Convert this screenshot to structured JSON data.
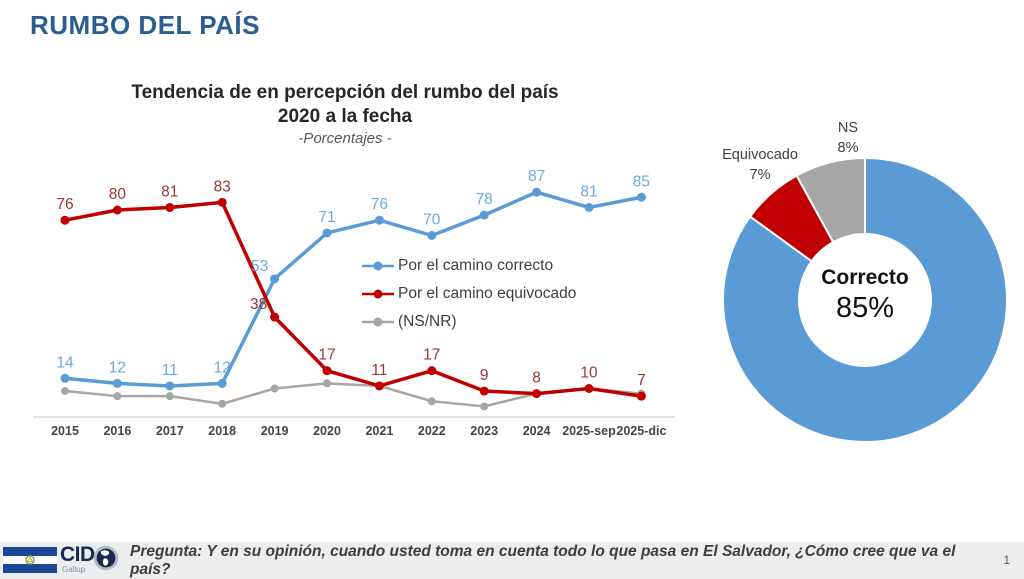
{
  "page": {
    "title": "RUMBO DEL PAÍS",
    "page_number": "1"
  },
  "colors": {
    "header_blue": "#2b5d91",
    "line_blue": "#5b9bd5",
    "line_red": "#c00000",
    "line_gray": "#a6a6a6",
    "label_blue": "#6fa8dc",
    "label_red": "#953735",
    "axis_label": "#454545",
    "axis_line": "#d9d9d9"
  },
  "chart_data": [
    {
      "type": "line",
      "title": "Tendencia de en percepción del rumbo del país",
      "subtitle": "2020 a la fecha",
      "subtitle2": "-Porcentajes -",
      "categories": [
        "2015",
        "2016",
        "2017",
        "2018",
        "2019",
        "2020",
        "2021",
        "2022",
        "2023",
        "2024",
        "2025-sep",
        "2025-dic"
      ],
      "series": [
        {
          "name": "Por el camino correcto",
          "color": "#5b9bd5",
          "label_color": "#6fa8dc",
          "labeled": true,
          "values": [
            14,
            12,
            11,
            12,
            53,
            71,
            76,
            70,
            78,
            87,
            81,
            85
          ]
        },
        {
          "name": "Por el camino equivocado",
          "color": "#c00000",
          "label_color": "#953735",
          "labeled": true,
          "values": [
            76,
            80,
            81,
            83,
            38,
            17,
            11,
            17,
            9,
            8,
            10,
            7
          ]
        },
        {
          "name": "(NS/NR)",
          "color": "#a6a6a6",
          "labeled": false,
          "estimated": true,
          "values": [
            9,
            7,
            7,
            4,
            10,
            12,
            11,
            5,
            3,
            8,
            10,
            8
          ]
        }
      ],
      "ylim": [
        0,
        100
      ],
      "grid": false,
      "legend_position": "center-right"
    },
    {
      "type": "donut",
      "slices": [
        {
          "label": "Correcto",
          "value": 85,
          "value_label": "85%",
          "color": "#5b9bd5"
        },
        {
          "label": "Equivocado",
          "value": 7,
          "value_label": "7%",
          "color": "#c00000"
        },
        {
          "label": "NS",
          "value": 8,
          "value_label": "8%",
          "color": "#a6a6a6"
        }
      ],
      "center_label": "Correcto",
      "center_value": "85%",
      "start_angle_deg": -90,
      "direction": "clockwise"
    }
  ],
  "footer": {
    "question": "Pregunta: Y en su opinión, cuando usted toma en cuenta todo lo que pasa en El Salvador, ¿Cómo cree que va el país?",
    "brand": "CID",
    "brand_sub": "Gallup"
  }
}
